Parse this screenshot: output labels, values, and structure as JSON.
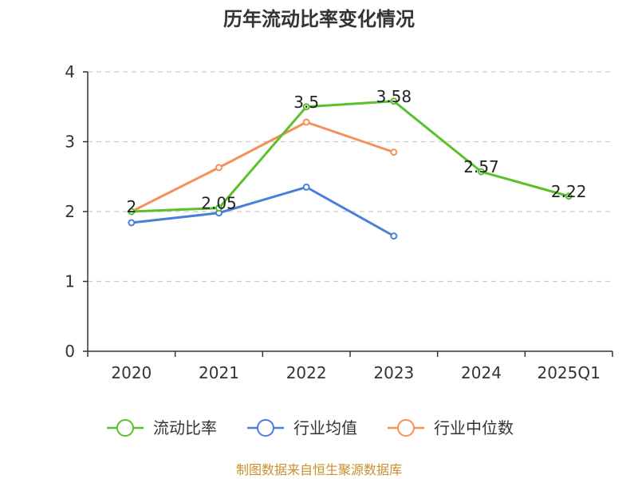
{
  "chart_data": {
    "type": "line",
    "title": "历年流动比率变化情况",
    "categories": [
      "2020",
      "2021",
      "2022",
      "2023",
      "2024",
      "2025Q1"
    ],
    "yticks": [
      "0",
      "1",
      "2",
      "3",
      "4"
    ],
    "ylim": [
      0,
      4
    ],
    "grid": true,
    "legend_position": "bottom",
    "series": [
      {
        "name": "流动比率",
        "color": "#5ac12a",
        "values": [
          2.0,
          2.05,
          3.5,
          3.58,
          2.57,
          2.22
        ],
        "labels": [
          "2",
          "2.05",
          "3.5",
          "3.58",
          "2.57",
          "2.22"
        ]
      },
      {
        "name": "行业均值",
        "color": "#4a7fd9",
        "values": [
          1.84,
          1.98,
          2.35,
          1.65,
          null,
          null
        ]
      },
      {
        "name": "行业中位数",
        "color": "#f5905a",
        "values": [
          2.0,
          2.63,
          3.28,
          2.85,
          null,
          null
        ]
      }
    ]
  },
  "footer": {
    "source": "制图数据来自恒生聚源数据库",
    "source_color": "#c8902a"
  }
}
